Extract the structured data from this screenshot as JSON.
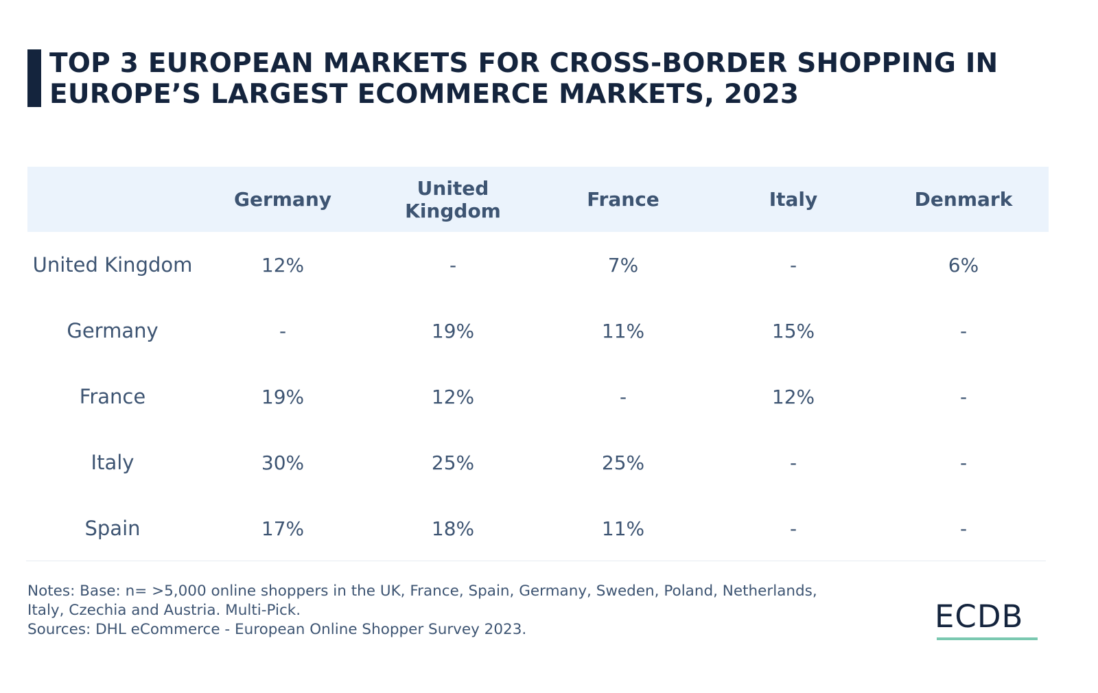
{
  "colors": {
    "title": "#14243d",
    "text": "#3d5472",
    "header_bg": "#ebf3fc",
    "accent_bar": "#14243d",
    "logo_underline": "#7ac8b0"
  },
  "title": {
    "line1": "TOP 3 EUROPEAN MARKETS FOR CROSS-BORDER SHOPPING IN",
    "line2": "EUROPE’S LARGEST ECOMMERCE MARKETS, 2023"
  },
  "chart_data": {
    "type": "table",
    "title": "TOP 3 EUROPEAN MARKETS FOR CROSS-BORDER SHOPPING IN EUROPE’S LARGEST ECOMMERCE MARKETS, 2023",
    "columns": [
      "",
      "Germany",
      "United Kingdom",
      "France",
      "Italy",
      "Denmark"
    ],
    "rows": [
      [
        "United Kingdom",
        "12%",
        "-",
        "7%",
        "-",
        "6%"
      ],
      [
        "Germany",
        "-",
        "19%",
        "11%",
        "15%",
        "-"
      ],
      [
        "France",
        "19%",
        "12%",
        "-",
        "12%",
        "-"
      ],
      [
        "Italy",
        "30%",
        "25%",
        "25%",
        "-",
        "-"
      ],
      [
        "Spain",
        "17%",
        "18%",
        "11%",
        "-",
        "-"
      ]
    ]
  },
  "notes": {
    "line1": "Notes: Base: n= >5,000 online shoppers in the UK, France, Spain, Germany, Sweden, Poland, Netherlands,",
    "line2": "Italy, Czechia and Austria. Multi-Pick.",
    "line3": "Sources: DHL eCommerce - European Online Shopper Survey 2023."
  },
  "logo": {
    "text": "ECDB"
  }
}
